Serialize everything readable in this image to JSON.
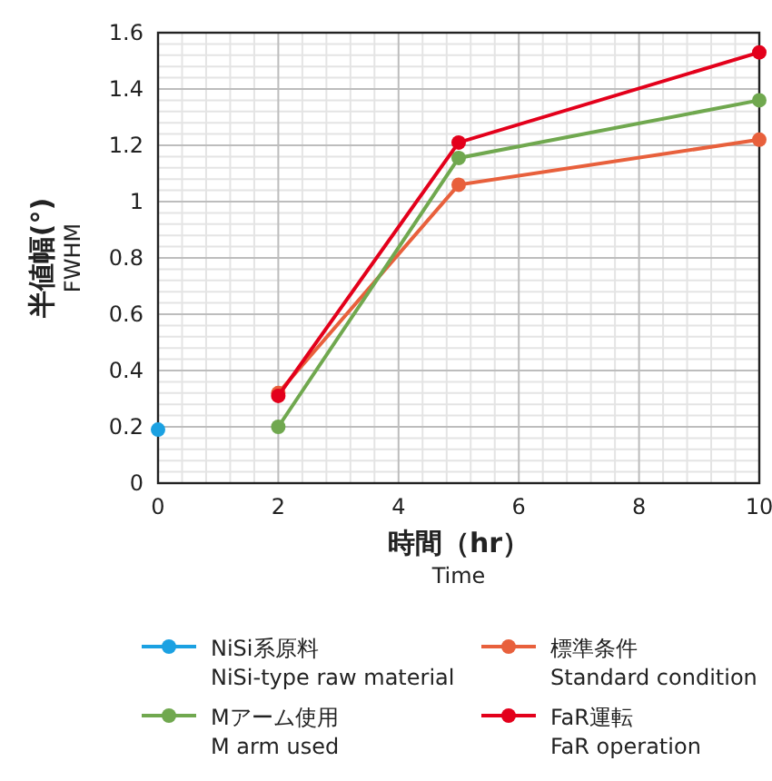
{
  "chart_data": {
    "type": "line",
    "xlabel": "時間（hr）\nTime",
    "ylabel": "半値幅(°)\nFWHM",
    "xlim": [
      0,
      10
    ],
    "xticks": [
      0,
      2,
      4,
      6,
      8,
      10
    ],
    "ylim": [
      0,
      1.6
    ],
    "yticks": [
      0,
      0.2,
      0.4,
      0.6,
      0.8,
      1,
      1.2,
      1.4,
      1.6
    ],
    "grid": true,
    "marker": "circle",
    "line_style": "solid",
    "legend": "bottom",
    "series": [
      {
        "name": "NiSi系原料\nNiSi-type raw material",
        "color": "#1ba1e2",
        "x": [
          0
        ],
        "values": [
          0.19
        ]
      },
      {
        "name": "標準条件\nStandard condition",
        "color": "#e8603c",
        "x": [
          2,
          5,
          10
        ],
        "values": [
          0.32,
          1.06,
          1.22
        ]
      },
      {
        "name": "Mアーム使用\nM arm used",
        "color": "#70a84f",
        "x": [
          2,
          5,
          10
        ],
        "values": [
          0.2,
          1.155,
          1.36
        ]
      },
      {
        "name": "FaR運転\nFaR operation",
        "color": "#e3001b",
        "x": [
          2,
          5,
          10
        ],
        "values": [
          0.31,
          1.21,
          1.53
        ]
      }
    ]
  }
}
